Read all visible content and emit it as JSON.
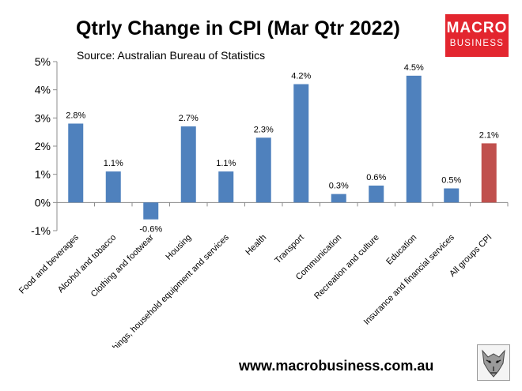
{
  "title": "Qtrly Change in CPI (Mar Qtr 2022)",
  "source": "Source: Australian Bureau of Statistics",
  "logo": {
    "line1": "MACRO",
    "line2": "BUSINESS"
  },
  "website": "www.macrobusiness.com.au",
  "colors": {
    "bar": "#4f81bd",
    "highlight": "#c0504d",
    "logo": "#e3262f"
  },
  "chart_data": {
    "type": "bar",
    "title": "Qtrly Change in CPI (Mar Qtr 2022)",
    "subtitle": "Source: Australian Bureau of Statistics",
    "categories": [
      "Food and beverages",
      "Alcohol and tobacco",
      "Clothing and footwear",
      "Housing",
      "Furnishings, household equipment and services",
      "Health",
      "Transport",
      "Communication",
      "Recreation and culture",
      "Education",
      "Insurance and financial services",
      "All groups CPI"
    ],
    "values": [
      2.8,
      1.1,
      -0.6,
      2.7,
      1.1,
      2.3,
      4.2,
      0.3,
      0.6,
      4.5,
      0.5,
      2.1
    ],
    "data_labels": [
      "2.8%",
      "1.1%",
      "-0.6%",
      "2.7%",
      "1.1%",
      "2.3%",
      "4.2%",
      "0.3%",
      "0.6%",
      "4.5%",
      "0.5%",
      "2.1%"
    ],
    "highlight_index": 11,
    "ylim": [
      -1,
      5
    ],
    "yticks": [
      -1,
      0,
      1,
      2,
      3,
      4,
      5
    ],
    "ytick_labels": [
      "-1%",
      "0%",
      "1%",
      "2%",
      "3%",
      "4%",
      "5%"
    ],
    "xlabel": "",
    "ylabel": "",
    "grid": false,
    "legend": "none"
  }
}
